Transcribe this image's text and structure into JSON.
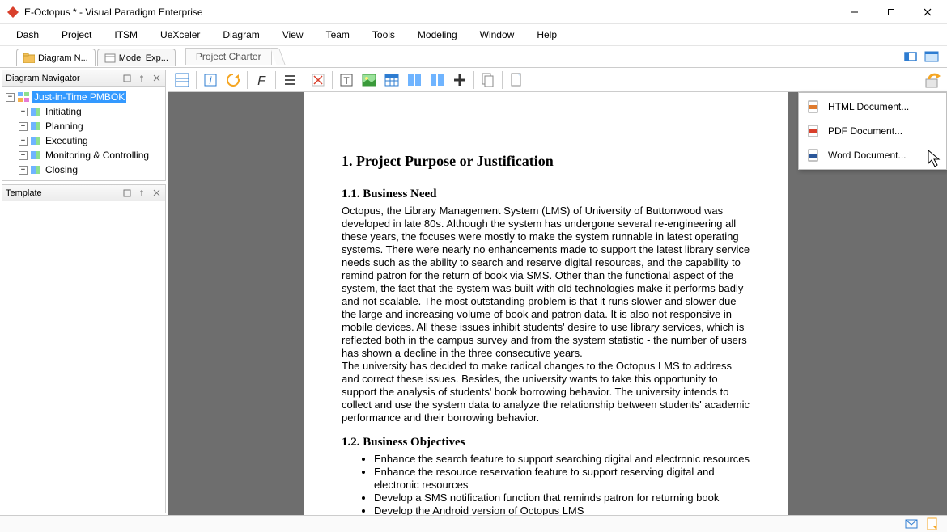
{
  "titlebar": {
    "title": "E-Octopus * - Visual Paradigm Enterprise"
  },
  "menubar": {
    "items": [
      "Dash",
      "Project",
      "ITSM",
      "UeXceler",
      "Diagram",
      "View",
      "Team",
      "Tools",
      "Modeling",
      "Window",
      "Help"
    ]
  },
  "bcrow": {
    "tabs": [
      {
        "label": "Diagram N..."
      },
      {
        "label": "Model Exp..."
      }
    ],
    "breadcrumb": "Project Charter"
  },
  "left": {
    "navigator": {
      "title": "Diagram Navigator",
      "root": {
        "label": "Just-in-Time PMBOK"
      },
      "children": [
        "Initiating",
        "Planning",
        "Executing",
        "Monitoring & Controlling",
        "Closing"
      ]
    },
    "template": {
      "title": "Template"
    }
  },
  "export_menu": {
    "items": [
      {
        "label": "HTML Document...",
        "icon": "#e07b2e"
      },
      {
        "label": "PDF Document...",
        "icon": "#d9402c"
      },
      {
        "label": "Word Document...",
        "icon": "#2b579a"
      }
    ]
  },
  "document": {
    "h1": "1. Project Purpose or Justification",
    "h2_1": "1.1. Business Need",
    "p1": "Octopus, the Library Management System (LMS) of University of Buttonwood was developed in late 80s. Although the system has undergone several re-engineering all these years, the focuses were mostly to make the system runnable in latest operating systems. There were nearly no enhancements made to support the latest library service needs such as the ability to search and reserve digital resources, and the capability to remind patron for the return of book via SMS. Other than the functional aspect of the system, the fact that the system was built with old technologies make it performs badly and not scalable. The most outstanding problem is that it runs slower and slower due the large and increasing volume of book and patron data. It is also not responsive in mobile devices. All these issues inhibit students' desire to use library services, which is reflected both in the campus survey and from the system statistic - the number of users has shown a decline in the three consecutive years.",
    "p2": "The university has decided to make radical changes to the Octopus LMS to address and correct these issues. Besides, the university wants to take this opportunity to support the analysis of students' book borrowing behavior. The university intends to collect and use the system data to analyze the relationship between students' academic performance and their borrowing behavior.",
    "h2_2": "1.2. Business Objectives",
    "objectives": [
      "Enhance the search feature to support searching digital and electronic resources",
      "Enhance the resource reservation feature to support reserving digital and electronic resources",
      "Develop a SMS notification function that reminds patron for returning book",
      "Develop the Android version of Octopus LMS"
    ]
  },
  "colors": {
    "selection": "#3399ff",
    "canvas_bg": "#6e6e6e",
    "accent_blue": "#2d7cd1"
  }
}
